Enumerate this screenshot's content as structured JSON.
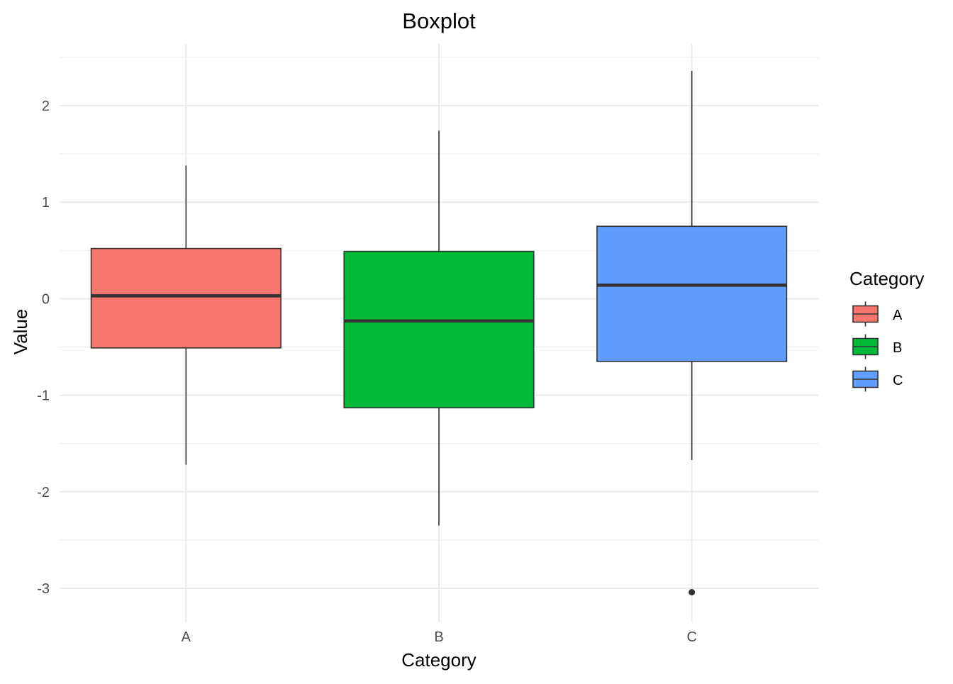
{
  "chart_data": {
    "type": "boxplot",
    "title": "Boxplot",
    "xlabel": "Category",
    "ylabel": "Value",
    "categories": [
      "A",
      "B",
      "C"
    ],
    "ylim": [
      -3.3,
      2.6
    ],
    "y_ticks": [
      -3,
      -2,
      -1,
      0,
      1,
      2
    ],
    "y_minor_ticks": [
      -2.5,
      -1.5,
      -0.5,
      0.5,
      1.5,
      2.5
    ],
    "grid": true,
    "legend": {
      "title": "Category",
      "position": "right",
      "entries": [
        "A",
        "B",
        "C"
      ]
    },
    "series": [
      {
        "category": "A",
        "color": "#F8766D",
        "whisker_low": -1.72,
        "q1": -0.51,
        "median": 0.03,
        "q3": 0.52,
        "whisker_high": 1.38,
        "outliers": []
      },
      {
        "category": "B",
        "color": "#00BA38",
        "whisker_low": -2.35,
        "q1": -1.13,
        "median": -0.23,
        "q3": 0.49,
        "whisker_high": 1.74,
        "outliers": []
      },
      {
        "category": "C",
        "color": "#619CFF",
        "whisker_low": -1.67,
        "q1": -0.65,
        "median": 0.14,
        "q3": 0.75,
        "whisker_high": 2.36,
        "outliers": [
          -3.04
        ]
      }
    ]
  }
}
